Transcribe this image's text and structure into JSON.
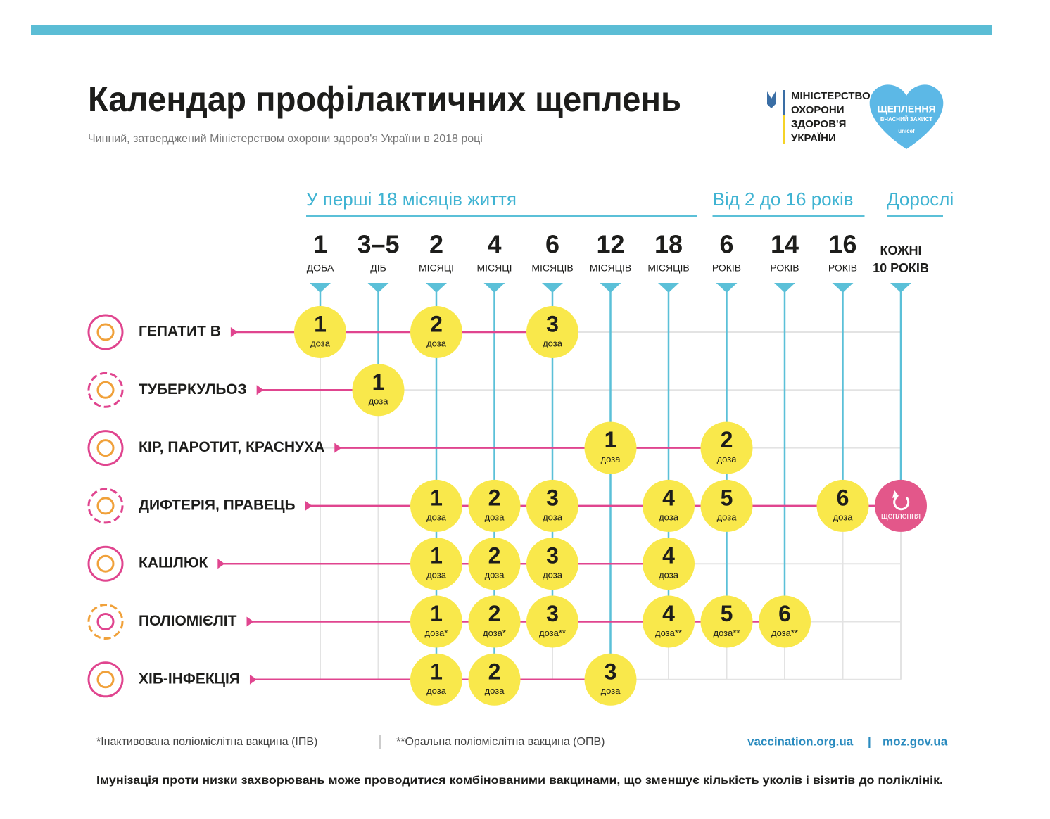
{
  "header": {
    "title": "Календар профілактичних щеплень",
    "subtitle": "Чинний, затверджений Міністерством охорони здоров'я України в 2018 році",
    "ministry": [
      "МІНІСТЕРСТВО",
      "ОХОРОНИ",
      "ЗДОРОВ'Я",
      "УКРАЇНИ"
    ],
    "logo": [
      "ЩЕПЛЕННЯ",
      "ВЧАСНИЙ ЗАХИСТ",
      "unicef"
    ]
  },
  "groups": [
    {
      "title": "У перші 18 місяців життя",
      "columns": [
        {
          "top": "1",
          "bottom": "ДОБА"
        },
        {
          "top": "3–5",
          "bottom": "ДІБ"
        },
        {
          "top": "2",
          "bottom": "МІСЯЦІ"
        },
        {
          "top": "4",
          "bottom": "МІСЯЦІ"
        },
        {
          "top": "6",
          "bottom": "МІСЯЦІВ"
        },
        {
          "top": "12",
          "bottom": "МІСЯЦІВ"
        },
        {
          "top": "18",
          "bottom": "МІСЯЦІВ"
        }
      ]
    },
    {
      "title": "Від 2 до 16 років",
      "columns": [
        {
          "top": "6",
          "bottom": "РОКІВ"
        },
        {
          "top": "14",
          "bottom": "РОКІВ"
        },
        {
          "top": "16",
          "bottom": "РОКІВ"
        }
      ]
    },
    {
      "title": "Дорослі",
      "columns": [
        {
          "top": "КОЖНІ",
          "bottom": "10 РОКІВ"
        }
      ]
    }
  ],
  "rows": [
    {
      "name": "ГЕПАТИТ В",
      "cells": [
        {
          "num": "1",
          "label": "доза"
        },
        null,
        {
          "num": "2",
          "label": "доза"
        },
        null,
        {
          "num": "3",
          "label": "доза"
        },
        null,
        null,
        null,
        null,
        null,
        null
      ]
    },
    {
      "name": "ТУБЕРКУЛЬОЗ",
      "cells": [
        null,
        {
          "num": "1",
          "label": "доза"
        },
        null,
        null,
        null,
        null,
        null,
        null,
        null,
        null,
        null
      ]
    },
    {
      "name": "КІР, ПАРОТИТ, КРАСНУХА",
      "cells": [
        null,
        null,
        null,
        null,
        null,
        {
          "num": "1",
          "label": "доза"
        },
        null,
        {
          "num": "2",
          "label": "доза"
        },
        null,
        null,
        null
      ]
    },
    {
      "name": "ДИФТЕРІЯ, ПРАВЕЦЬ",
      "cells": [
        null,
        null,
        {
          "num": "1",
          "label": "доза"
        },
        {
          "num": "2",
          "label": "доза"
        },
        {
          "num": "3",
          "label": "доза"
        },
        null,
        {
          "num": "4",
          "label": "доза"
        },
        {
          "num": "5",
          "label": "доза"
        },
        null,
        {
          "num": "6",
          "label": "доза"
        },
        {
          "label": "щеплення"
        }
      ]
    },
    {
      "name": "КАШЛЮК",
      "cells": [
        null,
        null,
        {
          "num": "1",
          "label": "доза"
        },
        {
          "num": "2",
          "label": "доза"
        },
        {
          "num": "3",
          "label": "доза"
        },
        null,
        {
          "num": "4",
          "label": "доза"
        },
        null,
        null,
        null,
        null
      ]
    },
    {
      "name": "ПОЛІОМІЄЛІТ",
      "cells": [
        null,
        null,
        {
          "num": "1",
          "label": "доза*"
        },
        {
          "num": "2",
          "label": "доза*"
        },
        {
          "num": "3",
          "label": "доза**"
        },
        null,
        {
          "num": "4",
          "label": "доза**"
        },
        {
          "num": "5",
          "label": "доза**"
        },
        {
          "num": "6",
          "label": "доза**"
        },
        null,
        null
      ]
    },
    {
      "name": "ХІБ-ІНФЕКЦІЯ",
      "cells": [
        null,
        null,
        {
          "num": "1",
          "label": "доза"
        },
        {
          "num": "2",
          "label": "доза"
        },
        null,
        {
          "num": "3",
          "label": "доза"
        },
        null,
        null,
        null,
        null,
        null
      ]
    }
  ],
  "footer": {
    "notes": [
      "*Інактивована поліомієлітна вакцина (ІПВ)",
      "**Оральна поліомієлітна вакцина (ОПВ)"
    ],
    "links": [
      "vaccination.org.ua",
      "moz.gov.ua"
    ],
    "text": "Імунізація проти низки захворювань може проводитися комбінованими вакцинами, що зменшує кількість уколів і візитів до поліклінік."
  }
}
